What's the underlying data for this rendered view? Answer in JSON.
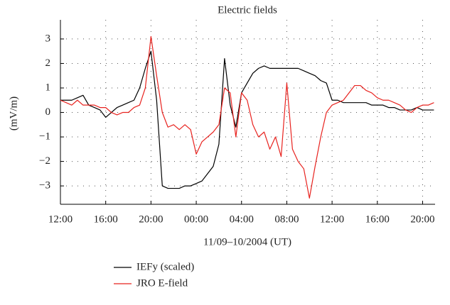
{
  "chart_data": {
    "type": "line",
    "title": "Electric fields",
    "x_label": "11/09–10/2004 (UT)",
    "y_label": "(mV/m)",
    "x": [
      0,
      0.5,
      1,
      1.5,
      2,
      2.5,
      3,
      3.5,
      4,
      4.5,
      5,
      5.5,
      6,
      6.5,
      7,
      7.5,
      8,
      8.5,
      9,
      9.5,
      10,
      10.5,
      11,
      11.5,
      12,
      12.5,
      13,
      13.5,
      14,
      14.5,
      15,
      15.5,
      16,
      16.5,
      17,
      17.5,
      18,
      18.5,
      19,
      19.5,
      20,
      20.5,
      21,
      21.5,
      22,
      22.5,
      23,
      23.5,
      24,
      24.5,
      25,
      25.5,
      26,
      26.5,
      27,
      27.5,
      28,
      28.5,
      29,
      29.5,
      30,
      30.5,
      31,
      31.5,
      32,
      32.5,
      33
    ],
    "series": [
      {
        "name": "IEFy (scaled)",
        "color": "#000000",
        "values": [
          0.5,
          0.5,
          0.5,
          0.6,
          0.7,
          0.3,
          0.2,
          0.1,
          -0.2,
          0.0,
          0.2,
          0.3,
          0.4,
          0.5,
          1.0,
          1.8,
          2.5,
          0.5,
          -3.0,
          -3.1,
          -3.1,
          -3.1,
          -3.0,
          -3.0,
          -2.9,
          -2.8,
          -2.5,
          -2.2,
          -1.3,
          2.2,
          0.3,
          -0.6,
          0.8,
          1.2,
          1.6,
          1.8,
          1.9,
          1.8,
          1.8,
          1.8,
          1.8,
          1.8,
          1.8,
          1.7,
          1.6,
          1.5,
          1.3,
          1.2,
          0.5,
          0.5,
          0.4,
          0.4,
          0.4,
          0.4,
          0.4,
          0.3,
          0.3,
          0.3,
          0.2,
          0.2,
          0.1,
          0.1,
          0.1,
          0.2,
          0.1,
          0.1,
          0.1
        ]
      },
      {
        "name": "JRO E-field",
        "color": "#e8231f",
        "values": [
          0.5,
          0.4,
          0.3,
          0.5,
          0.3,
          0.3,
          0.3,
          0.2,
          0.2,
          0.0,
          -0.1,
          0.0,
          0.0,
          0.2,
          0.3,
          1.0,
          3.1,
          1.5,
          0.0,
          -0.6,
          -0.5,
          -0.7,
          -0.5,
          -0.7,
          -1.7,
          -1.2,
          -1.0,
          -0.8,
          -0.5,
          1.0,
          0.8,
          -1.0,
          0.8,
          0.5,
          -0.5,
          -1.0,
          -0.8,
          -1.5,
          -1.0,
          -1.8,
          1.2,
          -1.5,
          -2.0,
          -2.3,
          -3.5,
          -2.2,
          -1.0,
          0.0,
          0.3,
          0.4,
          0.5,
          0.8,
          1.1,
          1.1,
          0.9,
          0.8,
          0.6,
          0.5,
          0.5,
          0.4,
          0.3,
          0.1,
          0.0,
          0.2,
          0.3,
          0.3,
          0.4
        ]
      }
    ],
    "xlim": [
      0,
      33.1
    ],
    "xticks": [
      {
        "value": 0,
        "label": "12:00"
      },
      {
        "value": 4,
        "label": "16:00"
      },
      {
        "value": 8,
        "label": "20:00"
      },
      {
        "value": 12,
        "label": "00:00"
      },
      {
        "value": 16,
        "label": "04:00"
      },
      {
        "value": 20,
        "label": "08:00"
      },
      {
        "value": 24,
        "label": "12:00"
      },
      {
        "value": 28,
        "label": "16:00"
      },
      {
        "value": 32,
        "label": "20:00"
      }
    ],
    "ylim": [
      -3.75,
      3.78
    ],
    "yticks": [
      {
        "value": -3,
        "label": "−3"
      },
      {
        "value": -2,
        "label": "−2"
      },
      {
        "value": -1,
        "label": "−1"
      },
      0,
      1,
      2,
      3
    ],
    "grid": true
  }
}
